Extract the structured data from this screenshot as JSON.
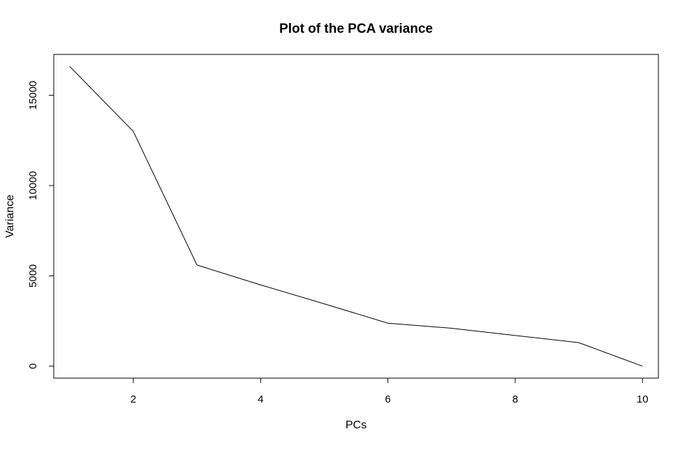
{
  "chart_data": {
    "type": "line",
    "title": "Plot of the PCA variance",
    "xlabel": "PCs",
    "ylabel": "Variance",
    "x": [
      1,
      2,
      3,
      4,
      5,
      6,
      7,
      8,
      9,
      10
    ],
    "series": [
      {
        "values": [
          16600,
          13000,
          5600,
          4500,
          3450,
          2380,
          2100,
          1700,
          1300,
          0
        ]
      }
    ],
    "xlim": [
      0.75,
      10.25
    ],
    "ylim": [
      -664,
      17264
    ],
    "xticks": [
      2,
      4,
      6,
      8,
      10
    ],
    "yticks": [
      0,
      5000,
      10000,
      15000
    ],
    "grid": false,
    "line_color": "#000000"
  }
}
